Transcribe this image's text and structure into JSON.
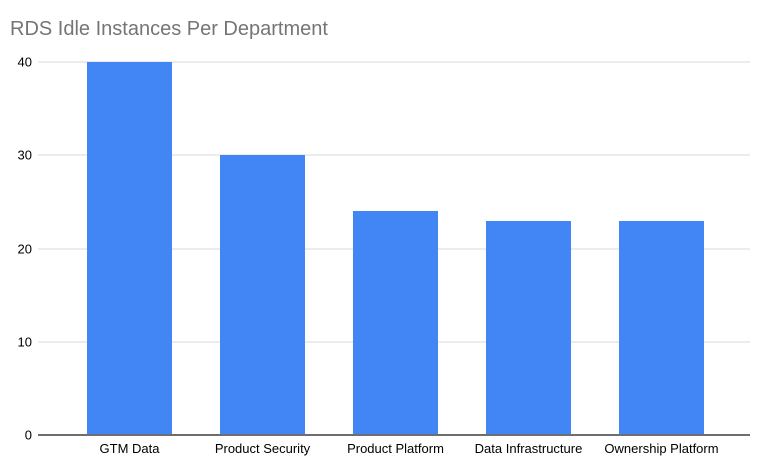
{
  "chart_data": {
    "type": "bar",
    "title": "RDS Idle Instances Per Department",
    "categories": [
      "GTM Data",
      "Product Security",
      "Product Platform",
      "Data Infrastructure",
      "Ownership Platform"
    ],
    "values": [
      40,
      30,
      24,
      23,
      23
    ],
    "xlabel": "",
    "ylabel": "",
    "ylim": [
      0,
      40
    ],
    "yticks": [
      0,
      10,
      20,
      30,
      40
    ],
    "grid": true,
    "legend": "none"
  },
  "colors": {
    "bar": "#4285F4",
    "title_text": "#757575",
    "axis_text": "#000000",
    "gridline": "#d9d9d9",
    "baseline": "#6e6e6e",
    "background": "#ffffff"
  }
}
